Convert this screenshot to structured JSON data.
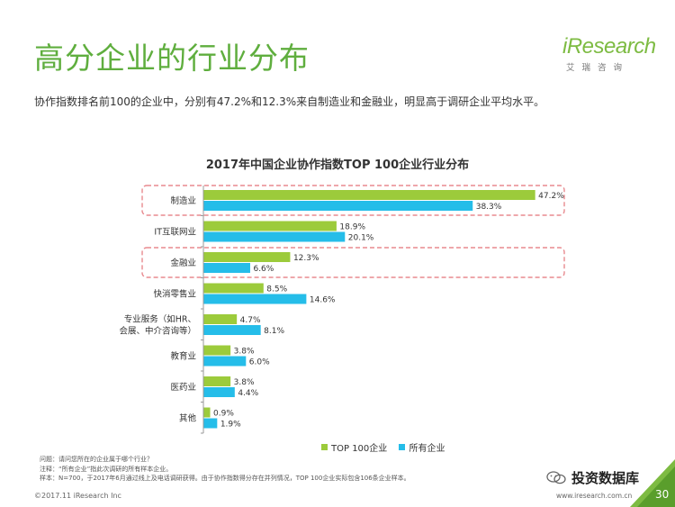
{
  "page": {
    "title": "高分企业的行业分布",
    "subtitle": "协作指数排名前100的企业中，分别有47.2%和12.3%来自制造业和金融业，明显高于调研企业平均水平。",
    "logo_text": "iResearch",
    "logo_sub": "艾瑞咨询",
    "notes": [
      "问题：请问您所在的企业属于哪个行业？",
      "注释：“所有企业”指此次调研的所有样本企业。",
      "样本：N=700，于2017年6月通过线上及电话调研获得。由于协作指数得分存在并列情况，TOP 100企业实际包含106条企业样本。"
    ],
    "copyright": "©2017.11 iResearch Inc",
    "website": "www.iresearch.com.cn",
    "wechat_label": "投资数据库",
    "page_number": "30",
    "colors": {
      "title": "#5fae3e",
      "top100": "#9ccb3b",
      "all": "#25bde9",
      "highlight": "#e88a8f"
    }
  },
  "chart_data": {
    "type": "bar",
    "orientation": "horizontal",
    "title": "2017年中国企业协作指数TOP 100企业行业分布",
    "categories": [
      "制造业",
      "IT互联网业",
      "金融业",
      "快消零售业",
      "专业服务（如HR、会展、中介咨询等）",
      "教育业",
      "医药业",
      "其他"
    ],
    "category_lines": [
      [
        "制造业"
      ],
      [
        "IT互联网业"
      ],
      [
        "金融业"
      ],
      [
        "快消零售业"
      ],
      [
        "专业服务（如HR、",
        "会展、中介咨询等）"
      ],
      [
        "教育业"
      ],
      [
        "医药业"
      ],
      [
        "其他"
      ]
    ],
    "series": [
      {
        "name": "TOP 100企业",
        "color": "#9ccb3b",
        "values": [
          47.2,
          18.9,
          12.3,
          8.5,
          4.7,
          3.8,
          3.8,
          0.9
        ]
      },
      {
        "name": "所有企业",
        "color": "#25bde9",
        "values": [
          38.3,
          20.1,
          6.6,
          14.6,
          8.1,
          6.0,
          4.4,
          1.9
        ]
      }
    ],
    "value_suffix": "%",
    "xlim": [
      0,
      50
    ],
    "highlighted": [
      "制造业",
      "金融业"
    ],
    "legend_position": "bottom-right",
    "grid": false
  }
}
